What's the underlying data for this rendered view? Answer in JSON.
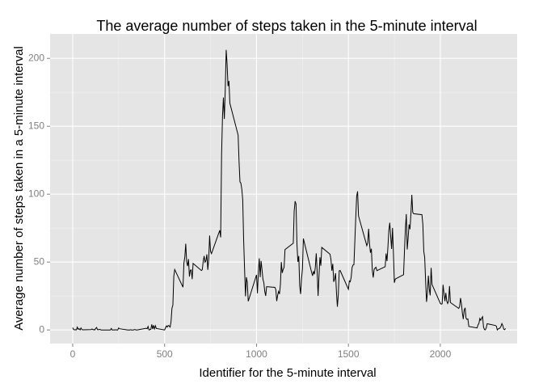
{
  "chart_data": {
    "type": "line",
    "title": "The average number of steps taken in the 5-minute interval",
    "x_label": "Identifier for the 5-minute interval",
    "y_label": "Average number of steps taken in a 5-minute interval",
    "xlim": [
      -123,
      2418
    ],
    "ylim": [
      -10,
      218
    ],
    "xticks": [
      0,
      500,
      1000,
      1500,
      2000
    ],
    "yticks": [
      0,
      50,
      100,
      150,
      200
    ],
    "grid": true,
    "color": "#000000",
    "x": [
      0,
      5,
      10,
      15,
      20,
      25,
      30,
      35,
      40,
      45,
      50,
      55,
      100,
      105,
      110,
      115,
      120,
      125,
      130,
      135,
      140,
      145,
      150,
      155,
      200,
      205,
      210,
      215,
      220,
      225,
      230,
      235,
      240,
      245,
      250,
      255,
      300,
      305,
      310,
      315,
      320,
      325,
      330,
      335,
      340,
      345,
      350,
      355,
      400,
      405,
      410,
      415,
      420,
      425,
      430,
      435,
      440,
      445,
      450,
      455,
      500,
      505,
      510,
      515,
      520,
      525,
      530,
      535,
      540,
      545,
      550,
      555,
      600,
      605,
      610,
      615,
      620,
      625,
      630,
      635,
      640,
      645,
      650,
      655,
      700,
      705,
      710,
      715,
      720,
      725,
      730,
      735,
      740,
      745,
      750,
      755,
      800,
      805,
      810,
      815,
      820,
      825,
      830,
      835,
      840,
      845,
      850,
      855,
      900,
      905,
      910,
      915,
      920,
      925,
      930,
      935,
      940,
      945,
      950,
      955,
      1000,
      1005,
      1010,
      1015,
      1020,
      1025,
      1030,
      1035,
      1040,
      1045,
      1050,
      1055,
      1100,
      1105,
      1110,
      1115,
      1120,
      1125,
      1130,
      1135,
      1140,
      1145,
      1150,
      1155,
      1200,
      1205,
      1210,
      1215,
      1220,
      1225,
      1230,
      1235,
      1240,
      1245,
      1250,
      1255,
      1300,
      1305,
      1310,
      1315,
      1320,
      1325,
      1330,
      1335,
      1340,
      1345,
      1350,
      1355,
      1400,
      1405,
      1410,
      1415,
      1420,
      1425,
      1430,
      1435,
      1440,
      1445,
      1450,
      1455,
      1500,
      1505,
      1510,
      1515,
      1520,
      1525,
      1530,
      1535,
      1540,
      1545,
      1550,
      1555,
      1600,
      1605,
      1610,
      1615,
      1620,
      1625,
      1630,
      1635,
      1640,
      1645,
      1650,
      1655,
      1700,
      1705,
      1710,
      1715,
      1720,
      1725,
      1730,
      1735,
      1740,
      1745,
      1750,
      1755,
      1800,
      1805,
      1810,
      1815,
      1820,
      1825,
      1830,
      1835,
      1840,
      1845,
      1850,
      1855,
      1900,
      1905,
      1910,
      1915,
      1920,
      1925,
      1930,
      1935,
      1940,
      1945,
      1950,
      1955,
      2000,
      2005,
      2010,
      2015,
      2020,
      2025,
      2030,
      2035,
      2040,
      2045,
      2050,
      2055,
      2100,
      2105,
      2110,
      2115,
      2120,
      2125,
      2130,
      2135,
      2140,
      2145,
      2150,
      2155,
      2200,
      2205,
      2210,
      2215,
      2220,
      2225,
      2230,
      2235,
      2240,
      2245,
      2250,
      2255,
      2300,
      2305,
      2310,
      2315,
      2320,
      2325,
      2330,
      2335,
      2340,
      2345,
      2350,
      2355
    ],
    "values": [
      1.7,
      0.3,
      0.1,
      0.2,
      0.1,
      2.1,
      0.5,
      0.9,
      0,
      1.5,
      0.3,
      0.1,
      0.3,
      0.7,
      0.2,
      0.3,
      0,
      1.1,
      1.8,
      0.2,
      0.2,
      0.4,
      0.3,
      0,
      0,
      0,
      1.1,
      0,
      0,
      0.1,
      0,
      0.2,
      0,
      0,
      1.5,
      0.9,
      0,
      0,
      0,
      0.2,
      0,
      0,
      0,
      0.3,
      0.3,
      0,
      0,
      0.1,
      1.2,
      0.9,
      2.6,
      0,
      0.3,
      0.4,
      4.1,
      0.7,
      3.5,
      0.8,
      3.1,
      1.1,
      0,
      1.6,
      3,
      2.2,
      3.3,
      3,
      2.1,
      6.1,
      16,
      18.3,
      39.5,
      44.5,
      31.5,
      49.3,
      53.8,
      63.5,
      50,
      47.1,
      52.2,
      39.3,
      44,
      44.2,
      37.4,
      49,
      43.8,
      44.4,
      50.5,
      54.5,
      49.9,
      51,
      55.7,
      44.3,
      52.3,
      69.5,
      57.8,
      56.2,
      73.4,
      68.2,
      129.4,
      157.5,
      171.2,
      155.4,
      177.3,
      206.2,
      195.9,
      179.6,
      183.4,
      167,
      143.5,
      124,
      109.1,
      108.1,
      103.7,
      95.9,
      66.2,
      45.2,
      24.8,
      38.8,
      35,
      21.1,
      40.6,
      27,
      42.4,
      52.7,
      38.9,
      50.8,
      44.3,
      37.4,
      34.7,
      28.3,
      25.1,
      31.9,
      31.4,
      29.7,
      21.3,
      25.5,
      28.4,
      26.5,
      33.4,
      50,
      42,
      44.6,
      46,
      59.2,
      63.9,
      87.7,
      94.8,
      92.8,
      63.4,
      50.2,
      54.5,
      32.4,
      26.5,
      37.7,
      45.1,
      67.3,
      42.3,
      39.9,
      43.3,
      41,
      46.2,
      56.4,
      42.8,
      25.1,
      40,
      53.5,
      47.3,
      60.8,
      55.8,
      52,
      43.6,
      48.7,
      35.5,
      37.5,
      41.8,
      27.5,
      17.1,
      26.1,
      43.6,
      43.8,
      30,
      36.1,
      35.5,
      38.8,
      46,
      47.8,
      48.1,
      65.3,
      82.9,
      98.7,
      102.1,
      84,
      62.1,
      64.1,
      74.5,
      63.2,
      56.9,
      59.8,
      43.9,
      38.6,
      44.7,
      45.5,
      46.2,
      43.7,
      46.6,
      56.3,
      50.7,
      61.2,
      73.4,
      79,
      68.9,
      59.7,
      75.1,
      56.5,
      34.8,
      37.5,
      40.7,
      58,
      74.7,
      85.3,
      59.3,
      67.8,
      77.7,
      74.2,
      85.3,
      99.5,
      86.6,
      85.6,
      84.9,
      77.8,
      58,
      53.4,
      36.3,
      20.7,
      27.4,
      40,
      30.2,
      25.5,
      45.7,
      33.5,
      19.6,
      19,
      19.3,
      33.3,
      26.8,
      21.2,
      27.3,
      21.3,
      19.5,
      21.3,
      32.3,
      20.2,
      15.9,
      17.2,
      23.5,
      19.2,
      12.5,
      8,
      14.7,
      16.3,
      8.7,
      7.8,
      8.1,
      2.6,
      1.5,
      3.7,
      4.8,
      8.5,
      7.1,
      8.7,
      9.8,
      2.2,
      0.3,
      0.1,
      1.6,
      4.6,
      3.3,
      2.8,
      0,
      0.8,
      1,
      1.6,
      2.6,
      4.7,
      3.3,
      0.6,
      0.2,
      1.1
    ]
  }
}
